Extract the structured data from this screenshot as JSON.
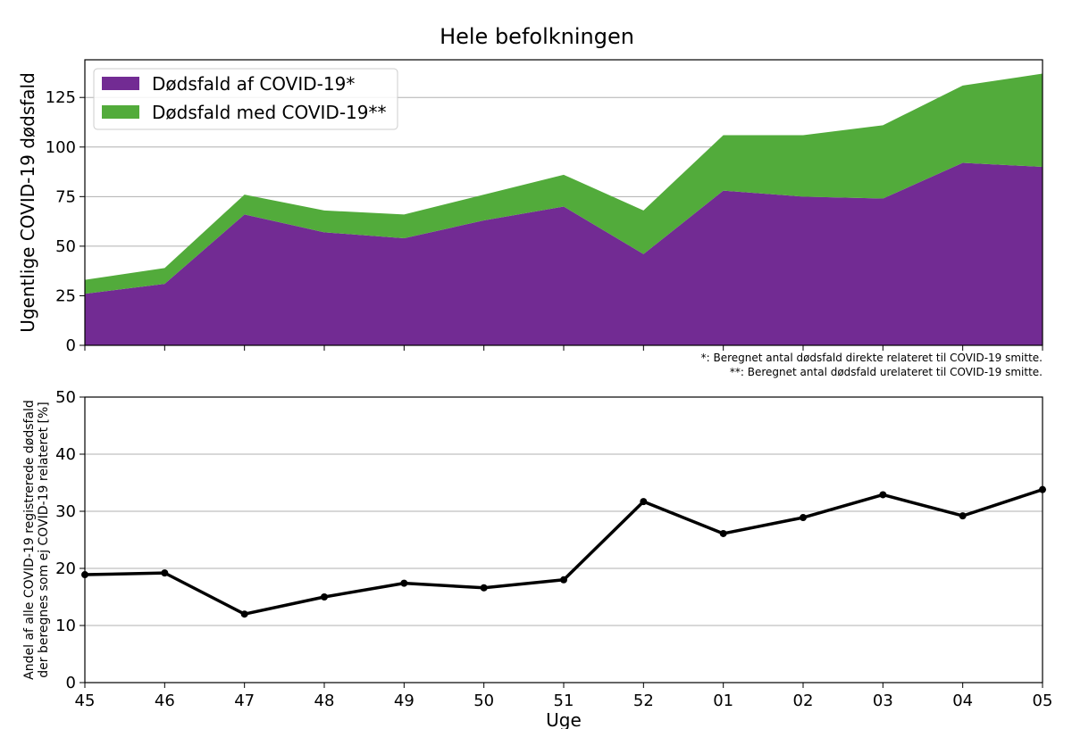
{
  "figure_title": "Hele befolkningen",
  "chart_data": [
    {
      "type": "area",
      "stacked": true,
      "title": "Hele befolkningen",
      "ylabel": "Ugentlige COVID-19 dødsfald",
      "xlabel": "",
      "categories": [
        "45",
        "46",
        "47",
        "48",
        "49",
        "50",
        "51",
        "52",
        "01",
        "02",
        "03",
        "04",
        "05"
      ],
      "series": [
        {
          "name": "Dødsfald af COVID-19*",
          "color": "#722b93",
          "values": [
            26,
            31,
            66,
            57,
            54,
            63,
            70,
            46,
            78,
            75,
            74,
            92,
            90
          ]
        },
        {
          "name": "Dødsfald med COVID-19**",
          "color": "#52ab3b",
          "values": [
            7,
            8,
            10,
            11,
            12,
            13,
            16,
            22,
            28,
            31,
            37,
            39,
            47
          ]
        }
      ],
      "ylim": [
        0,
        144
      ],
      "yticks": [
        "0",
        "25",
        "50",
        "75",
        "100",
        "125"
      ],
      "grid": true,
      "legend": "top-left",
      "footnotes": [
        "*: Beregnet antal dødsfald direkte relateret til COVID-19 smitte.",
        "**: Beregnet antal dødsfald urelateret til COVID-19 smitte."
      ]
    },
    {
      "type": "line",
      "title": "",
      "ylabel_line1": "Andel af alle COVID-19 registrerede dødsfald",
      "ylabel_line2": "der beregnes som ej COVID-19 relateret [%]",
      "xlabel": "Uge",
      "categories": [
        "45",
        "46",
        "47",
        "48",
        "49",
        "50",
        "51",
        "52",
        "01",
        "02",
        "03",
        "04",
        "05"
      ],
      "series": [
        {
          "name": "Andel",
          "color": "#000000",
          "values": [
            18.9,
            19.2,
            12.0,
            15.0,
            17.4,
            16.6,
            18.0,
            31.7,
            26.1,
            28.9,
            32.9,
            29.2,
            33.8
          ]
        }
      ],
      "ylim": [
        0,
        50
      ],
      "yticks": [
        "0",
        "10",
        "20",
        "30",
        "40",
        "50"
      ],
      "grid": true
    }
  ]
}
